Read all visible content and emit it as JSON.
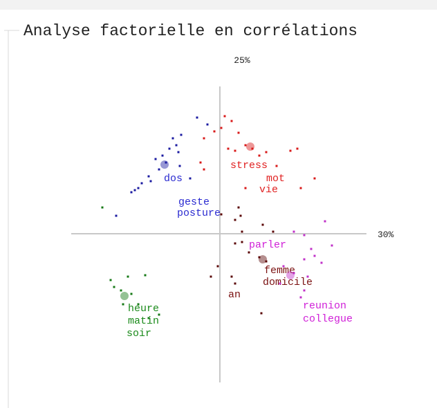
{
  "chart_data": {
    "type": "scatter",
    "title": "Analyse factorielle en corrélations",
    "x_label": "30%",
    "y_label": "25%",
    "xlim": [
      -2.15,
      2.12
    ],
    "ylim": [
      -2.15,
      2.13
    ],
    "series": [
      {
        "color": "#1a1aa0",
        "label_color": "#2a2ad0",
        "x": [
          -0.33,
          -0.18,
          -0.56,
          -0.68,
          -0.63,
          -0.73,
          -0.6,
          -0.83,
          -0.93,
          -0.78,
          -0.88,
          -1.03,
          -1.0,
          -1.13,
          -1.18,
          -1.23,
          -1.28,
          -0.58,
          -0.43,
          -1.5
        ],
        "y": [
          1.68,
          1.58,
          1.43,
          1.38,
          1.28,
          1.23,
          1.18,
          1.13,
          1.08,
          1.03,
          0.93,
          0.83,
          0.76,
          0.73,
          0.66,
          0.63,
          0.6,
          0.98,
          0.8,
          0.26
        ],
        "centroid_x": -0.8,
        "centroid_y": 1.0,
        "labels": [
          "dos",
          "geste",
          "posture"
        ],
        "label_x": [
          -0.81,
          -0.6,
          -0.62
        ],
        "label_y": [
          0.76,
          0.42,
          0.26
        ]
      },
      {
        "color": "#d81818",
        "label_color": "#e02020",
        "x": [
          0.07,
          0.17,
          0.02,
          0.27,
          -0.23,
          -0.08,
          0.12,
          0.22,
          0.37,
          0.47,
          0.57,
          0.67,
          1.02,
          1.12,
          0.82,
          1.37,
          1.17,
          0.37,
          -0.28,
          -0.23
        ],
        "y": [
          1.7,
          1.63,
          1.53,
          1.46,
          1.38,
          1.48,
          1.23,
          1.2,
          1.28,
          1.23,
          1.13,
          1.18,
          1.2,
          1.23,
          0.98,
          0.8,
          0.66,
          0.66,
          1.03,
          0.93
        ],
        "centroid_x": 0.44,
        "centroid_y": 1.26,
        "labels": [
          "stress",
          "mot",
          "vie"
        ],
        "label_x": [
          0.15,
          0.67,
          0.57
        ],
        "label_y": [
          0.95,
          0.76,
          0.6
        ]
      },
      {
        "color": "#5a0606",
        "label_color": "#7a1010",
        "x": [
          0.27,
          0.22,
          0.32,
          0.62,
          0.77,
          0.32,
          0.22,
          0.42,
          0.57,
          0.67,
          -0.03,
          -0.13,
          0.17,
          0.22,
          0.6,
          0.02,
          0.3
        ],
        "y": [
          0.38,
          0.2,
          0.03,
          0.13,
          0.03,
          -0.12,
          -0.14,
          -0.27,
          -0.34,
          -0.4,
          -0.47,
          -0.62,
          -0.62,
          -0.72,
          -1.15,
          0.28,
          0.26
        ],
        "centroid_x": 0.62,
        "centroid_y": -0.37,
        "labels": [
          "femme",
          "domicile",
          "an"
        ],
        "label_x": [
          0.64,
          0.62,
          0.12
        ],
        "label_y": [
          -0.57,
          -0.74,
          -0.92
        ]
      },
      {
        "color": "#c030c8",
        "label_color": "#d020d8",
        "x": [
          1.07,
          1.22,
          1.52,
          1.62,
          1.37,
          1.22,
          1.47,
          1.07,
          1.27,
          0.87,
          1.22,
          1.17,
          0.92,
          1.32
        ],
        "y": [
          0.03,
          -0.02,
          0.18,
          -0.17,
          -0.32,
          -0.37,
          -0.42,
          -0.57,
          -0.62,
          -0.72,
          -0.82,
          -0.92,
          -0.47,
          -0.22
        ],
        "centroid_x": 1.02,
        "centroid_y": -0.6,
        "labels": [
          "parler",
          "reunion",
          "collegue"
        ],
        "label_x": [
          0.42,
          1.2,
          1.2
        ],
        "label_y": [
          -0.2,
          -1.08,
          -1.27
        ]
      },
      {
        "color": "#157815",
        "label_color": "#1a8a1a",
        "x": [
          -1.7,
          -1.58,
          -1.53,
          -1.33,
          -1.08,
          -1.43,
          -1.28,
          -1.18,
          -1.4,
          -1.03,
          -0.88
        ],
        "y": [
          0.38,
          -0.67,
          -0.77,
          -0.62,
          -0.6,
          -0.82,
          -0.87,
          -1.02,
          -1.02,
          -1.22,
          -1.17
        ],
        "centroid_x": -1.38,
        "centroid_y": -0.9,
        "labels": [
          "heure",
          "matin",
          "soir"
        ],
        "label_x": [
          -1.33,
          -1.33,
          -1.35
        ],
        "label_y": [
          -1.12,
          -1.3,
          -1.48
        ]
      }
    ]
  }
}
